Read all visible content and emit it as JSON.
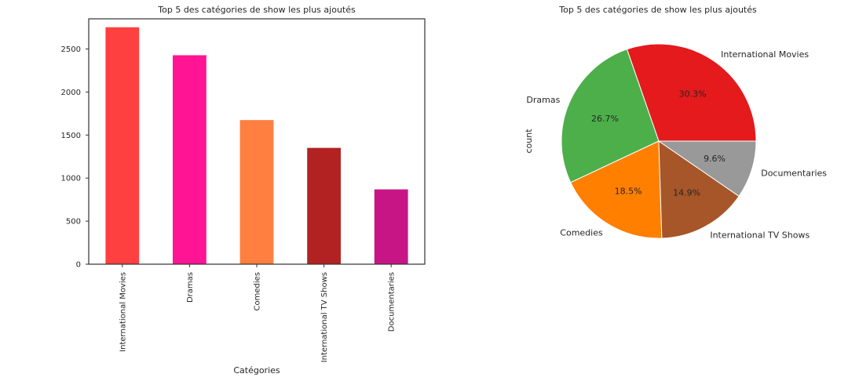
{
  "chart_data": [
    {
      "type": "bar",
      "title": "Top 5 des catégories de show les plus ajoutés",
      "xlabel": "Catégories",
      "ylabel": "",
      "categories": [
        "International Movies",
        "Dramas",
        "Comedies",
        "International TV Shows",
        "Documentaries"
      ],
      "values": [
        2752,
        2427,
        1674,
        1351,
        869
      ],
      "colors": [
        "#ff4040",
        "#ff1493",
        "#ff7f40",
        "#b22222",
        "#c71585"
      ],
      "ylim": [
        0,
        2850
      ],
      "yticks": [
        0,
        500,
        1000,
        1500,
        2000,
        2500
      ],
      "grid": false
    },
    {
      "type": "pie",
      "title": "Top 5 des catégories de show les plus ajoutés",
      "ylabel": "count",
      "labels": [
        "International Movies",
        "Dramas",
        "Comedies",
        "International TV Shows",
        "Documentaries"
      ],
      "values": [
        30.3,
        26.7,
        18.5,
        14.9,
        9.6
      ],
      "pct_labels": [
        "30.3%",
        "26.7%",
        "18.5%",
        "14.9%",
        "9.6%"
      ],
      "colors": [
        "#e41a1c",
        "#4daf4a",
        "#ff7f00",
        "#a65628",
        "#999999"
      ]
    }
  ]
}
